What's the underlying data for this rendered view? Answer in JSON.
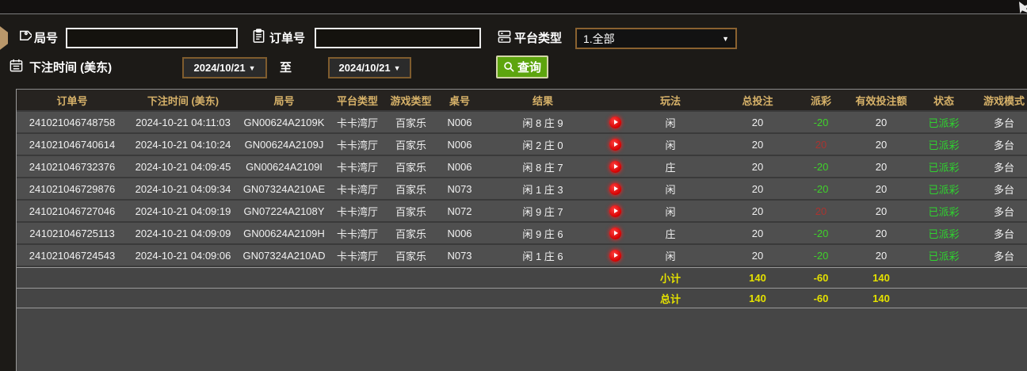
{
  "ui": {
    "caret_down": "▼"
  },
  "colors": {
    "header_gold": "#d7b269",
    "win_red": "#a93430",
    "lose_green": "#3fd32a",
    "status_green": "#2fd32f",
    "summary_yellow": "#e4e100",
    "button_green": "#5da50e",
    "picker_border_tan": "#8a6230"
  },
  "form": {
    "round_label": "局号",
    "order_label": "订单号",
    "platform_label": "平台类型",
    "platform_value": "1.全部",
    "time_label": "下注时间 (美东)",
    "date_from": "2024/10/21",
    "to_label": "至",
    "date_to": "2024/10/21",
    "search_label": "查询",
    "round_input_value": "",
    "order_input_value": ""
  },
  "table": {
    "columns": [
      {
        "key": "order_id",
        "label": "订单号"
      },
      {
        "key": "bet_time",
        "label": "下注时间 (美东)"
      },
      {
        "key": "round_id",
        "label": "局号"
      },
      {
        "key": "platform",
        "label": "平台类型"
      },
      {
        "key": "game_type",
        "label": "游戏类型"
      },
      {
        "key": "table_no",
        "label": "桌号"
      },
      {
        "key": "result",
        "label": "结果"
      },
      {
        "key": "video",
        "label": ""
      },
      {
        "key": "play",
        "label": "玩法"
      },
      {
        "key": "total_bet",
        "label": "总投注"
      },
      {
        "key": "payout",
        "label": "派彩"
      },
      {
        "key": "valid_bet",
        "label": "有效投注额"
      },
      {
        "key": "status",
        "label": "状态"
      },
      {
        "key": "mode",
        "label": "游戏模式"
      }
    ],
    "rows": [
      {
        "order_id": "241021046748758",
        "bet_time": "2024-10-21 04:11:03",
        "round_id": "GN00624A2109K",
        "platform": "卡卡湾厅",
        "game_type": "百家乐",
        "table_no": "N006",
        "result": "闲 8 庄 9",
        "play": "闲",
        "total_bet": "20",
        "payout": "-20",
        "valid_bet": "20",
        "status": "已派彩",
        "mode": "多台"
      },
      {
        "order_id": "241021046740614",
        "bet_time": "2024-10-21 04:10:24",
        "round_id": "GN00624A2109J",
        "platform": "卡卡湾厅",
        "game_type": "百家乐",
        "table_no": "N006",
        "result": "闲 2 庄 0",
        "play": "闲",
        "total_bet": "20",
        "payout": "20",
        "valid_bet": "20",
        "status": "已派彩",
        "mode": "多台"
      },
      {
        "order_id": "241021046732376",
        "bet_time": "2024-10-21 04:09:45",
        "round_id": "GN00624A2109I",
        "platform": "卡卡湾厅",
        "game_type": "百家乐",
        "table_no": "N006",
        "result": "闲 8 庄 7",
        "play": "庄",
        "total_bet": "20",
        "payout": "-20",
        "valid_bet": "20",
        "status": "已派彩",
        "mode": "多台"
      },
      {
        "order_id": "241021046729876",
        "bet_time": "2024-10-21 04:09:34",
        "round_id": "GN07324A210AE",
        "platform": "卡卡湾厅",
        "game_type": "百家乐",
        "table_no": "N073",
        "result": "闲 1 庄 3",
        "play": "闲",
        "total_bet": "20",
        "payout": "-20",
        "valid_bet": "20",
        "status": "已派彩",
        "mode": "多台"
      },
      {
        "order_id": "241021046727046",
        "bet_time": "2024-10-21 04:09:19",
        "round_id": "GN07224A2108Y",
        "platform": "卡卡湾厅",
        "game_type": "百家乐",
        "table_no": "N072",
        "result": "闲 9 庄 7",
        "play": "闲",
        "total_bet": "20",
        "payout": "20",
        "valid_bet": "20",
        "status": "已派彩",
        "mode": "多台"
      },
      {
        "order_id": "241021046725113",
        "bet_time": "2024-10-21 04:09:09",
        "round_id": "GN00624A2109H",
        "platform": "卡卡湾厅",
        "game_type": "百家乐",
        "table_no": "N006",
        "result": "闲 9 庄 6",
        "play": "庄",
        "total_bet": "20",
        "payout": "-20",
        "valid_bet": "20",
        "status": "已派彩",
        "mode": "多台"
      },
      {
        "order_id": "241021046724543",
        "bet_time": "2024-10-21 04:09:06",
        "round_id": "GN07324A210AD",
        "platform": "卡卡湾厅",
        "game_type": "百家乐",
        "table_no": "N073",
        "result": "闲 1 庄 6",
        "play": "闲",
        "total_bet": "20",
        "payout": "-20",
        "valid_bet": "20",
        "status": "已派彩",
        "mode": "多台"
      }
    ],
    "summary_rows": [
      {
        "label": "小计",
        "total_bet": "140",
        "payout": "-60",
        "valid_bet": "140"
      },
      {
        "label": "总计",
        "total_bet": "140",
        "payout": "-60",
        "valid_bet": "140"
      }
    ]
  }
}
